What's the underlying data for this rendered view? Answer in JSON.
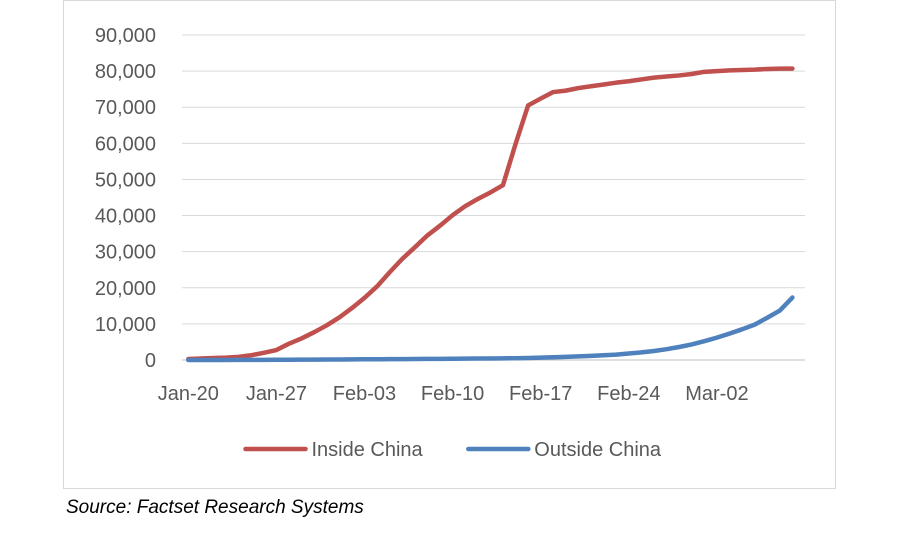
{
  "chart_data": {
    "type": "line",
    "title": "",
    "xlabel": "",
    "ylabel": "",
    "x": [
      "Jan-20",
      "Jan-21",
      "Jan-22",
      "Jan-23",
      "Jan-24",
      "Jan-25",
      "Jan-26",
      "Jan-27",
      "Jan-28",
      "Jan-29",
      "Jan-30",
      "Jan-31",
      "Feb-01",
      "Feb-02",
      "Feb-03",
      "Feb-04",
      "Feb-05",
      "Feb-06",
      "Feb-07",
      "Feb-08",
      "Feb-09",
      "Feb-10",
      "Feb-11",
      "Feb-12",
      "Feb-13",
      "Feb-14",
      "Feb-15",
      "Feb-16",
      "Feb-17",
      "Feb-18",
      "Feb-19",
      "Feb-20",
      "Feb-21",
      "Feb-22",
      "Feb-23",
      "Feb-24",
      "Feb-25",
      "Feb-26",
      "Feb-27",
      "Feb-28",
      "Feb-29",
      "Mar-01",
      "Mar-02",
      "Mar-03",
      "Mar-04",
      "Mar-05",
      "Mar-06",
      "Mar-07",
      "Mar-08"
    ],
    "x_tick_labels": [
      "Jan-20",
      "Jan-27",
      "Feb-03",
      "Feb-10",
      "Feb-17",
      "Feb-24",
      "Mar-02"
    ],
    "ylim": [
      0,
      90000
    ],
    "y_ticks": [
      0,
      10000,
      20000,
      30000,
      40000,
      50000,
      60000,
      70000,
      80000,
      90000
    ],
    "y_tick_labels": [
      "0",
      "10,000",
      "20,000",
      "30,000",
      "40,000",
      "50,000",
      "60,000",
      "70,000",
      "80,000",
      "90,000"
    ],
    "grid": "horizontal",
    "legend_position": "bottom",
    "series": [
      {
        "name": "Inside China",
        "color": "#c0504d",
        "values": [
          280,
          420,
          560,
          650,
          880,
          1330,
          1980,
          2760,
          4520,
          5970,
          7700,
          9600,
          11790,
          14380,
          17200,
          20400,
          24300,
          28000,
          31200,
          34500,
          37200,
          40100,
          42600,
          44600,
          46400,
          48400,
          59800,
          70500,
          72400,
          74200,
          74600,
          75300,
          75800,
          76300,
          76800,
          77200,
          77700,
          78200,
          78500,
          78800,
          79200,
          79800,
          80000,
          80200,
          80300,
          80400,
          80600,
          80700,
          80700
        ]
      },
      {
        "name": "Outside China",
        "color": "#4f81bd",
        "values": [
          6,
          8,
          10,
          14,
          20,
          30,
          50,
          60,
          70,
          90,
          110,
          130,
          150,
          170,
          190,
          210,
          230,
          250,
          280,
          300,
          320,
          350,
          380,
          400,
          420,
          450,
          500,
          550,
          650,
          750,
          850,
          1000,
          1150,
          1300,
          1500,
          1800,
          2100,
          2500,
          3000,
          3600,
          4300,
          5200,
          6200,
          7300,
          8500,
          9800,
          11700,
          13700,
          17300
        ]
      }
    ]
  },
  "source_note": "Source: Factset Research Systems"
}
